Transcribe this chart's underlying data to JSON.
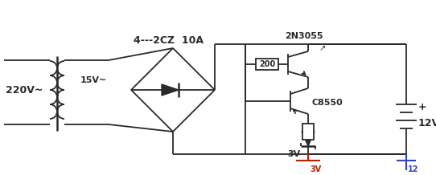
{
  "lc": "#2a2a2a",
  "lw": 1.3,
  "label_220": "220V~",
  "label_15": "15V~",
  "label_bridge": "4---2CZ  10A",
  "label_2N3055": "2N3055",
  "label_200": "200",
  "label_3V": "3V",
  "label_C8550": "C8550",
  "label_12V": "12V",
  "label_plus": "+",
  "label_3Vbot": "3V",
  "label_12bot": "12",
  "red_color": "#bb2200",
  "blue_color": "#3344bb"
}
